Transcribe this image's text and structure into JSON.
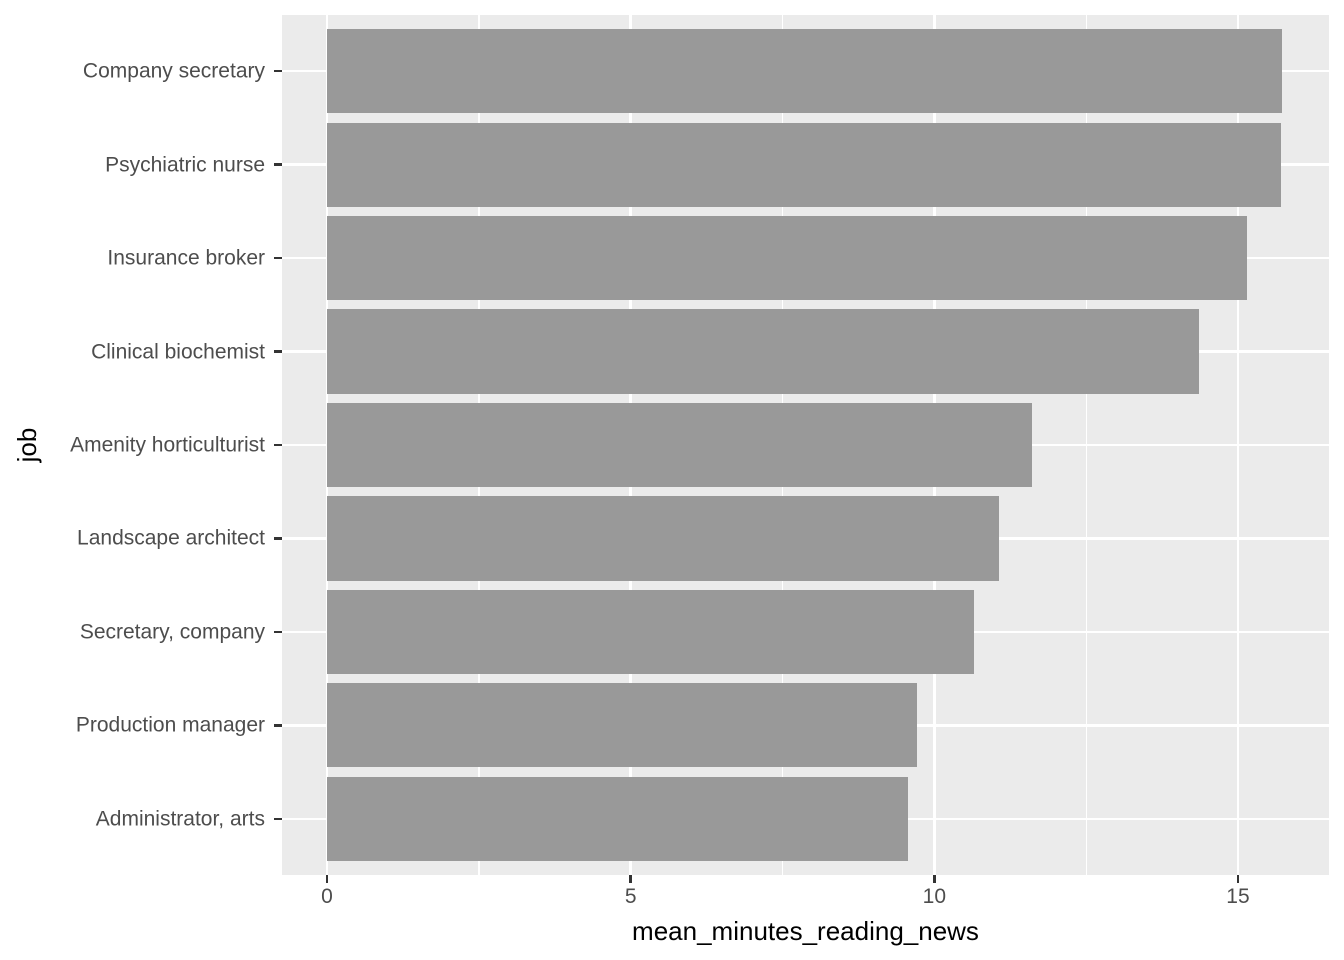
{
  "chart_data": {
    "type": "bar",
    "orientation": "horizontal",
    "title": "",
    "xlabel": "mean_minutes_reading_news",
    "ylabel": "job",
    "categories": [
      "Company secretary",
      "Psychiatric nurse",
      "Insurance broker",
      "Clinical biochemist",
      "Amenity horticulturist",
      "Landscape architect",
      "Secretary, company",
      "Production manager",
      "Administrator, arts"
    ],
    "values": [
      15.72,
      15.7,
      15.15,
      14.35,
      11.6,
      11.06,
      10.65,
      9.72,
      9.57
    ],
    "x_ticks": [
      0,
      5,
      10,
      15
    ],
    "x_minor_gridlines": [
      2.5,
      7.5,
      12.5
    ],
    "xlim": [
      -0.79,
      16.49
    ],
    "grid": "major-and-minor",
    "legend": "none",
    "bar_width_fraction": 0.9,
    "colors": {
      "figure_bg": "#FFFFFF",
      "panel_bg": "#EBEBEB",
      "bar": "#999999",
      "gridline": "#FFFFFF",
      "tick_mark": "#333333",
      "axis_text": "#4D4D4D",
      "axis_title": "#000000"
    }
  }
}
